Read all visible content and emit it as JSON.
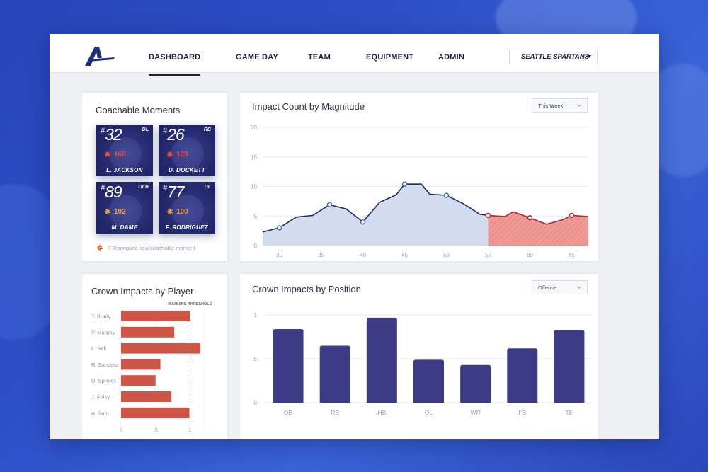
{
  "nav": {
    "items": [
      {
        "label": "DASHBOARD",
        "active": true
      },
      {
        "label": "GAME DAY",
        "active": false
      },
      {
        "label": "TEAM",
        "active": false
      },
      {
        "label": "EQUIPMENT",
        "active": false
      },
      {
        "label": "ADMIN",
        "active": false
      }
    ],
    "team_select": "SEATTLE SPARTANS",
    "logo_icon": "arrow-a-logo-icon"
  },
  "coachable": {
    "title": "Coachable Moments",
    "players": [
      {
        "number": "32",
        "position": "DL",
        "score": "166",
        "name": "L. JACKSON",
        "score_color": "#ef4b3a"
      },
      {
        "number": "26",
        "position": "RB",
        "score": "108",
        "name": "D. DOCKETT",
        "score_color": "#ef4b3a"
      },
      {
        "number": "89",
        "position": "OLB",
        "score": "102",
        "name": "M. DAME",
        "score_color": "#f0a030"
      },
      {
        "number": "77",
        "position": "DL",
        "score": "100",
        "name": "F. RODRIGUEZ",
        "score_color": "#f0a030"
      }
    ],
    "note": "F. Rodriguez new coachable moment",
    "note_icon": "alert-burst-icon"
  },
  "impact_count": {
    "title": "Impact Count by Magnitude",
    "dropdown": "This Week",
    "chart_data": {
      "type": "area",
      "x": [
        28,
        30,
        32,
        34,
        36,
        38,
        40,
        42,
        44,
        45,
        47,
        48,
        50,
        52,
        54,
        55,
        57,
        58,
        60,
        62,
        64,
        65,
        67
      ],
      "y": [
        2.3,
        3.0,
        4.8,
        5.1,
        6.9,
        6.2,
        4.0,
        7.3,
        8.6,
        10.4,
        10.4,
        8.7,
        8.5,
        7.1,
        5.3,
        5.1,
        4.9,
        5.7,
        4.7,
        3.6,
        4.4,
        5.1,
        4.9
      ],
      "threshold_x": 55,
      "markers_x": [
        30,
        36,
        40,
        45,
        50,
        55,
        60,
        65
      ],
      "xticks": [
        "30",
        "35",
        "40",
        "45",
        "50",
        "55",
        "60",
        "65"
      ],
      "yticks": [
        "0",
        "5",
        "10",
        "15",
        "20"
      ],
      "xlim": [
        28,
        67
      ],
      "ylim": [
        0,
        20
      ],
      "colors": {
        "line": "#1c2766",
        "fill_normal": "#d3dcec",
        "fill_high": "#f09a95",
        "line_high": "#b3242b"
      }
    }
  },
  "crown_player": {
    "title": "Crown Impacts by Player",
    "threshold_label": "WARNING THRESHOLD",
    "chart_data": {
      "type": "bar",
      "orientation": "horizontal",
      "categories": [
        "T. Brady",
        "P. Murphy",
        "L. Ball",
        "R. Sanders",
        "D. Sproles",
        "J. Foley",
        "A. Sam"
      ],
      "values": [
        1.0,
        0.77,
        1.15,
        0.57,
        0.5,
        0.73,
        0.99
      ],
      "xticks": [
        "0",
        ".5",
        "1"
      ],
      "xlim": [
        0,
        1.2
      ],
      "threshold": 1.0,
      "color": "#cf5547"
    }
  },
  "crown_position": {
    "title": "Crown Impacts by Position",
    "dropdown": "Offense",
    "chart_data": {
      "type": "bar",
      "categories": [
        "QB",
        "RB",
        "HB",
        "OL",
        "WR",
        "FB",
        "TE"
      ],
      "values": [
        0.84,
        0.65,
        0.97,
        0.49,
        0.43,
        0.62,
        0.83
      ],
      "yticks": [
        "0",
        ".5",
        "1"
      ],
      "ylim": [
        0,
        1.05
      ],
      "color": "#3b3c84"
    }
  }
}
